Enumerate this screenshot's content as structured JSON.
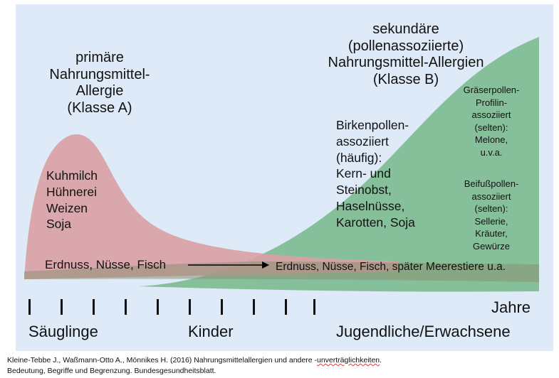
{
  "colors": {
    "background": "#dfeaf8",
    "red_area": "#d9a1a6",
    "green_area": "#86c09a",
    "band": "#8c8f72"
  },
  "primary": {
    "line1": "primäre",
    "line2": "Nahrungsmittel-",
    "line3": "Allergie",
    "line4": "(Klasse A)"
  },
  "primary_foods": [
    "Kuhmilch",
    "Hühnerei",
    "Weizen",
    "Soja"
  ],
  "secondary": {
    "line1": "sekundäre",
    "line2": "(pollenassoziierte)",
    "line3": "Nahrungsmittel-Allergien",
    "line4": "(Klasse B)"
  },
  "birch": [
    "Birkenpollen-",
    "assoziiert",
    "(häufig):",
    "Kern- und",
    "Steinobst,",
    "Haselnüsse,",
    "Karotten, Soja"
  ],
  "grass": [
    "Gräserpollen-",
    "Profilin-",
    "assoziiert",
    "(selten):",
    "Melone,",
    "u.v.a."
  ],
  "mugwort": [
    "Beifußpollen-",
    "assoziiert",
    "(selten):",
    "Sellerie,",
    "Kräuter,",
    "Gewürze"
  ],
  "band": {
    "left": "Erdnuss, Nüsse, Fisch",
    "right": "Erdnuss, Nüsse, Fisch, später Meerestiere u.a."
  },
  "axis": {
    "jahre": "Jahre",
    "stage1": "Säuglinge",
    "stage2": "Kinder",
    "stage3": "Jugendliche/Erwachsene"
  },
  "citation": {
    "p1": "Kleine-Tebbe J., Waßmann-Otto A., Mönnikes H. (2016) Nahrungsmittelallergien und andere -",
    "p2": "unverträglichkeiten",
    "p3": ".",
    "p4": "Bedeutung, Begriffe und Begrenzung. Bundesgesundheitsblatt."
  }
}
